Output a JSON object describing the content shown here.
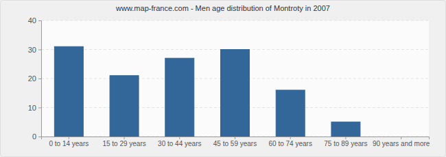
{
  "chart_data": {
    "type": "bar",
    "title": "www.map-france.com - Men age distribution of Montroty in 2007",
    "categories": [
      "0 to 14 years",
      "15 to 29 years",
      "30 to 44 years",
      "45 to 59 years",
      "60 to 74 years",
      "75 to 89 years",
      "90 years and more"
    ],
    "values": [
      31,
      21,
      27,
      30,
      16,
      5,
      0
    ],
    "color": "#336699",
    "ylim": [
      0,
      40
    ],
    "yticks": [
      0,
      10,
      20,
      30,
      40
    ],
    "grid": true
  }
}
